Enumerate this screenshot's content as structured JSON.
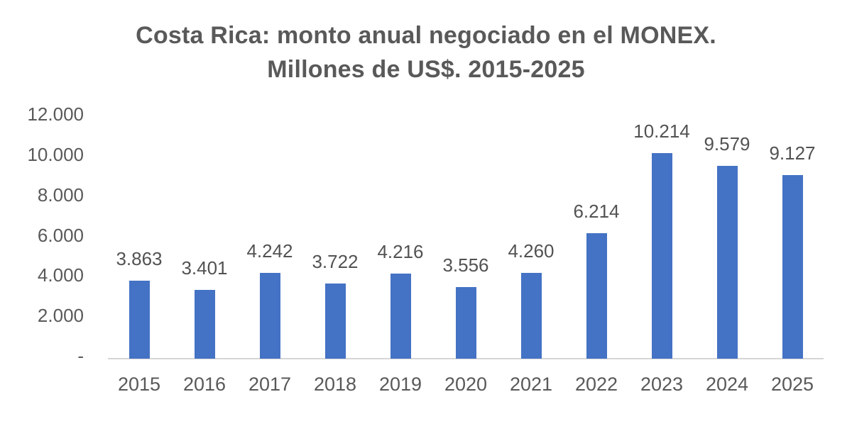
{
  "chart": {
    "title_line1": "Costa Rica: monto anual negociado en el MONEX.",
    "title_line2": "Millones de US$. 2015-2025"
  },
  "chart_data": {
    "type": "bar",
    "title": "Costa Rica: monto anual negociado en el MONEX. Millones de US$. 2015-2025",
    "xlabel": "",
    "ylabel": "",
    "categories": [
      "2015",
      "2016",
      "2017",
      "2018",
      "2019",
      "2020",
      "2021",
      "2022",
      "2023",
      "2024",
      "2025"
    ],
    "values": [
      3863,
      3401,
      4242,
      3722,
      4216,
      3556,
      4260,
      6214,
      10214,
      9579,
      9127
    ],
    "value_labels": [
      "3.863",
      "3.401",
      "4.242",
      "3.722",
      "4.216",
      "3.556",
      "4.260",
      "6.214",
      "10.214",
      "9.579",
      "9.127"
    ],
    "y_axis": {
      "range": [
        0,
        12000
      ],
      "ticks": [
        {
          "label": "12.000",
          "value": 12000
        },
        {
          "label": "10.000",
          "value": 10000
        },
        {
          "label": "8.000",
          "value": 8000
        },
        {
          "label": "6.000",
          "value": 6000
        },
        {
          "label": "4.000",
          "value": 4000
        },
        {
          "label": "2.000",
          "value": 2000
        },
        {
          "label": "-",
          "value": 0
        }
      ]
    },
    "grid": "off",
    "legend": "none",
    "data_labels_position": "outside-end",
    "colors": {
      "bar": "#4472C4",
      "title_text": "#595959",
      "axis_text": "#595959",
      "data_label_text": "#525252",
      "axis_line": "#D6D6D6",
      "background": "#FFFFFF"
    }
  }
}
